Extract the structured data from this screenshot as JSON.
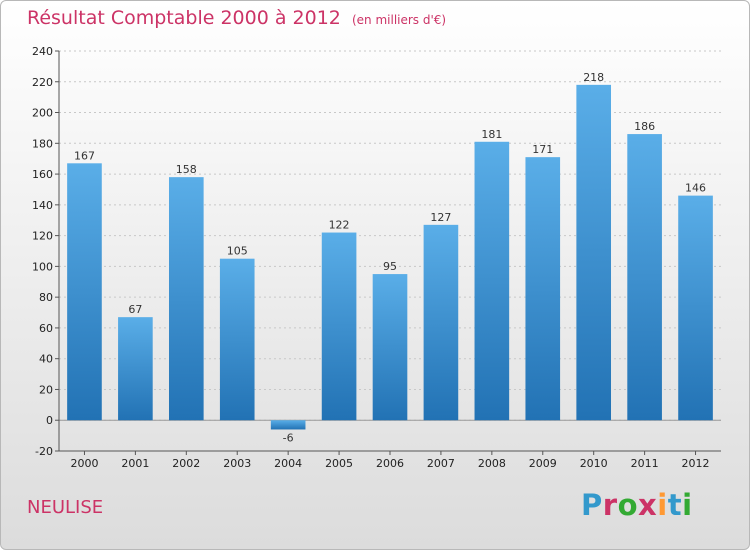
{
  "header": {
    "title": "Résultat Comptable 2000 à 2012",
    "subtitle": "(en milliers d'€)"
  },
  "footer": {
    "commune": "NEULISE",
    "logo_text": "Proxiti",
    "logo_colors": [
      "#3399cc",
      "#cc3366",
      "#33aa33",
      "#cc3366",
      "#ff9933",
      "#3399cc",
      "#33aa33"
    ]
  },
  "chart_data": {
    "type": "bar",
    "title": "Résultat Comptable 2000 à 2012",
    "subtitle": "(en milliers d'€)",
    "xlabel": "",
    "ylabel": "",
    "categories": [
      "2000",
      "2001",
      "2002",
      "2003",
      "2004",
      "2005",
      "2006",
      "2007",
      "2008",
      "2009",
      "2010",
      "2011",
      "2012"
    ],
    "values": [
      167,
      67,
      158,
      105,
      -6,
      122,
      95,
      127,
      181,
      171,
      218,
      186,
      146
    ],
    "ylim": [
      -20,
      240
    ],
    "yticks": [
      -20,
      0,
      20,
      40,
      60,
      80,
      100,
      120,
      140,
      160,
      180,
      200,
      220,
      240
    ],
    "grid": true,
    "legend": "none",
    "bar_color_top": "#5aaee8",
    "bar_color_bottom": "#2272b4"
  }
}
